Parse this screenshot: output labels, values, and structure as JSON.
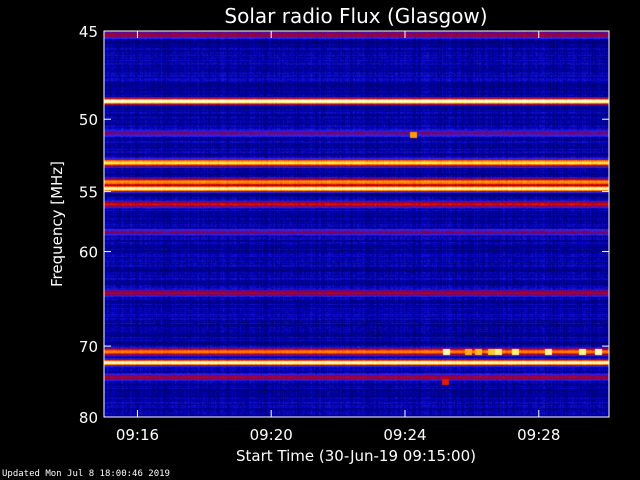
{
  "chart_data": {
    "type": "heatmap",
    "title": "Solar radio Flux (Glasgow)",
    "xlabel": "Start Time (30-Jun-19 09:15:00)",
    "ylabel": "Frequency [MHz]",
    "x_range_minutes": [
      0,
      15.1
    ],
    "x_ticks": [
      {
        "label": "09:16",
        "minute": 1.0
      },
      {
        "label": "09:20",
        "minute": 5.0
      },
      {
        "label": "09:24",
        "minute": 9.0
      },
      {
        "label": "09:28",
        "minute": 13.0
      }
    ],
    "y_scale": "reciprocal",
    "ylim": [
      45,
      80
    ],
    "y_ticks": [
      45,
      50,
      55,
      60,
      70,
      80
    ],
    "colormap": [
      "#000033",
      "#0000aa",
      "#2a2aff",
      "#7a0060",
      "#cc0000",
      "#ff4400",
      "#ff9900",
      "#ffee55",
      "#ffffff"
    ],
    "background_level": 0.12,
    "bands": [
      {
        "freq": 45.2,
        "intensity": 0.45
      },
      {
        "freq": 46.5,
        "intensity": 0.05
      },
      {
        "freq": 48.9,
        "intensity": 1.0
      },
      {
        "freq": 50.9,
        "intensity": 0.35
      },
      {
        "freq": 52.9,
        "intensity": 0.88
      },
      {
        "freq": 54.3,
        "intensity": 0.75
      },
      {
        "freq": 54.8,
        "intensity": 0.98
      },
      {
        "freq": 56.0,
        "intensity": 0.5
      },
      {
        "freq": 58.3,
        "intensity": 0.38
      },
      {
        "freq": 64.0,
        "intensity": 0.45
      },
      {
        "freq": 70.7,
        "intensity": 0.7
      },
      {
        "freq": 72.1,
        "intensity": 1.0
      },
      {
        "freq": 74.1,
        "intensity": 0.42
      },
      {
        "freq": 77.2,
        "intensity": 0.12
      }
    ],
    "bursts": [
      {
        "minute": 9.25,
        "freq": 51.0,
        "intensity": 0.75
      },
      {
        "minute": 10.25,
        "freq": 70.7,
        "intensity": 0.95
      },
      {
        "minute": 10.9,
        "freq": 70.7,
        "intensity": 0.78
      },
      {
        "minute": 11.2,
        "freq": 70.7,
        "intensity": 0.8
      },
      {
        "minute": 11.6,
        "freq": 70.7,
        "intensity": 0.82
      },
      {
        "minute": 11.8,
        "freq": 70.7,
        "intensity": 0.9
      },
      {
        "minute": 12.3,
        "freq": 70.7,
        "intensity": 0.9
      },
      {
        "minute": 13.3,
        "freq": 70.7,
        "intensity": 0.92
      },
      {
        "minute": 14.3,
        "freq": 70.7,
        "intensity": 0.92
      },
      {
        "minute": 14.8,
        "freq": 70.7,
        "intensity": 0.95
      },
      {
        "minute": 10.2,
        "freq": 74.8,
        "intensity": 0.55
      }
    ]
  },
  "footer": {
    "updated": "Updated Mon Jul  8 18:00:46 2019"
  }
}
